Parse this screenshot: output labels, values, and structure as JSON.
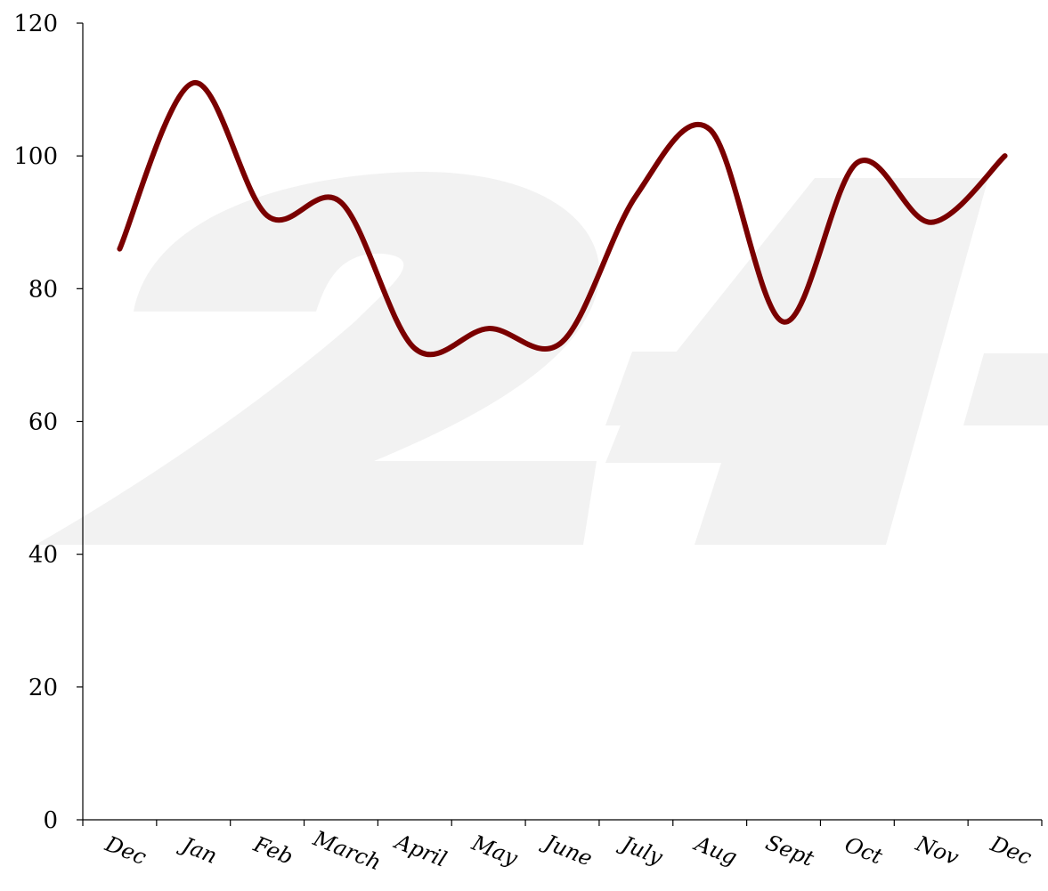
{
  "chart_data": {
    "type": "line",
    "title": "",
    "xlabel": "",
    "ylabel": "",
    "categories": [
      "Dec",
      "Jan",
      "Feb",
      "March",
      "April",
      "May",
      "June",
      "July",
      "Aug",
      "Sept",
      "Oct",
      "Nov",
      "Dec"
    ],
    "series": [
      {
        "color": "#7a0000",
        "smooth": true,
        "values": [
          86,
          111,
          91,
          93,
          71,
          74,
          72,
          94,
          104,
          75,
          99,
          90,
          100
        ]
      }
    ],
    "ylim": [
      0,
      120
    ],
    "yticks": [
      "0",
      "20",
      "40",
      "60",
      "80",
      "100",
      "120"
    ],
    "grid": false,
    "legend": "none"
  },
  "watermark": {
    "text": "24",
    "color": "#f2f2f2"
  }
}
